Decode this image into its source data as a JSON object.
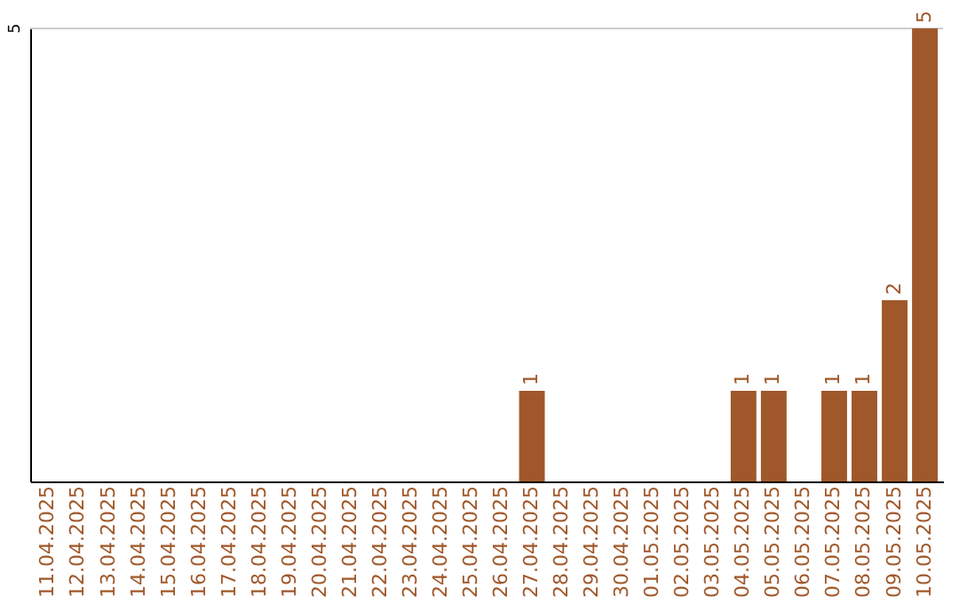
{
  "chart_data": {
    "type": "bar",
    "categories": [
      "11.04.2025",
      "12.04.2025",
      "13.04.2025",
      "14.04.2025",
      "15.04.2025",
      "16.04.2025",
      "17.04.2025",
      "18.04.2025",
      "19.04.2025",
      "20.04.2025",
      "21.04.2025",
      "22.04.2025",
      "23.04.2025",
      "24.04.2025",
      "25.04.2025",
      "26.04.2025",
      "27.04.2025",
      "28.04.2025",
      "29.04.2025",
      "30.04.2025",
      "01.05.2025",
      "02.05.2025",
      "03.05.2025",
      "04.05.2025",
      "05.05.2025",
      "06.05.2025",
      "07.05.2025",
      "08.05.2025",
      "09.05.2025",
      "10.05.2025"
    ],
    "values": [
      null,
      null,
      null,
      null,
      null,
      null,
      null,
      null,
      null,
      null,
      null,
      null,
      null,
      null,
      null,
      null,
      1,
      null,
      null,
      null,
      null,
      null,
      null,
      1,
      1,
      null,
      1,
      1,
      2,
      5
    ],
    "data_labels": true,
    "color": "#a0582a",
    "ylim": [
      0,
      5
    ],
    "ref_lines": [
      {
        "axis": "y",
        "value": 5,
        "label": "5",
        "color": "#cccccc"
      }
    ]
  }
}
